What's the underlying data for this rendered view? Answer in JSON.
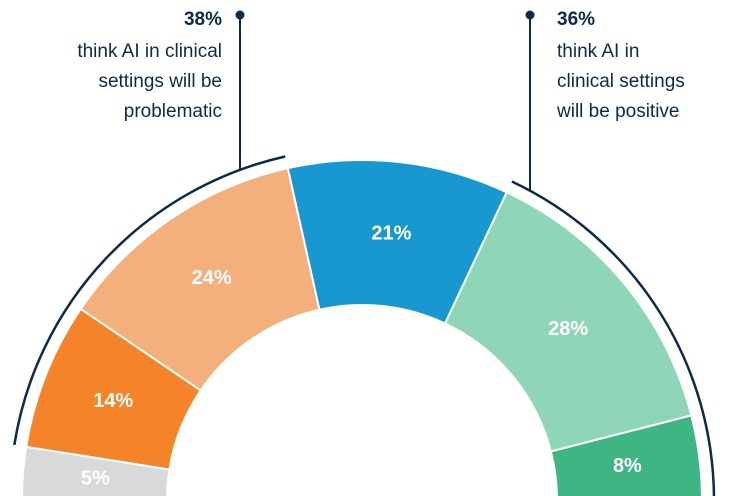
{
  "chart_data": {
    "type": "donut",
    "values": [
      5,
      14,
      24,
      21,
      28,
      8
    ],
    "value_labels": [
      "5%",
      "14%",
      "24%",
      "21%",
      "28%",
      "8%"
    ],
    "colors": [
      "#d9d9d9",
      "#f4832a",
      "#f3b07c",
      "#1897d0",
      "#8fd5b8",
      "#3fb583"
    ],
    "annotations": [
      {
        "value": 38,
        "label": "38%",
        "lines": [
          "think AI in clinical",
          "settings will be",
          "problematic"
        ]
      },
      {
        "value": 36,
        "label": "36%",
        "lines": [
          "think AI in",
          "clinical settings",
          "will be positive"
        ]
      }
    ]
  }
}
